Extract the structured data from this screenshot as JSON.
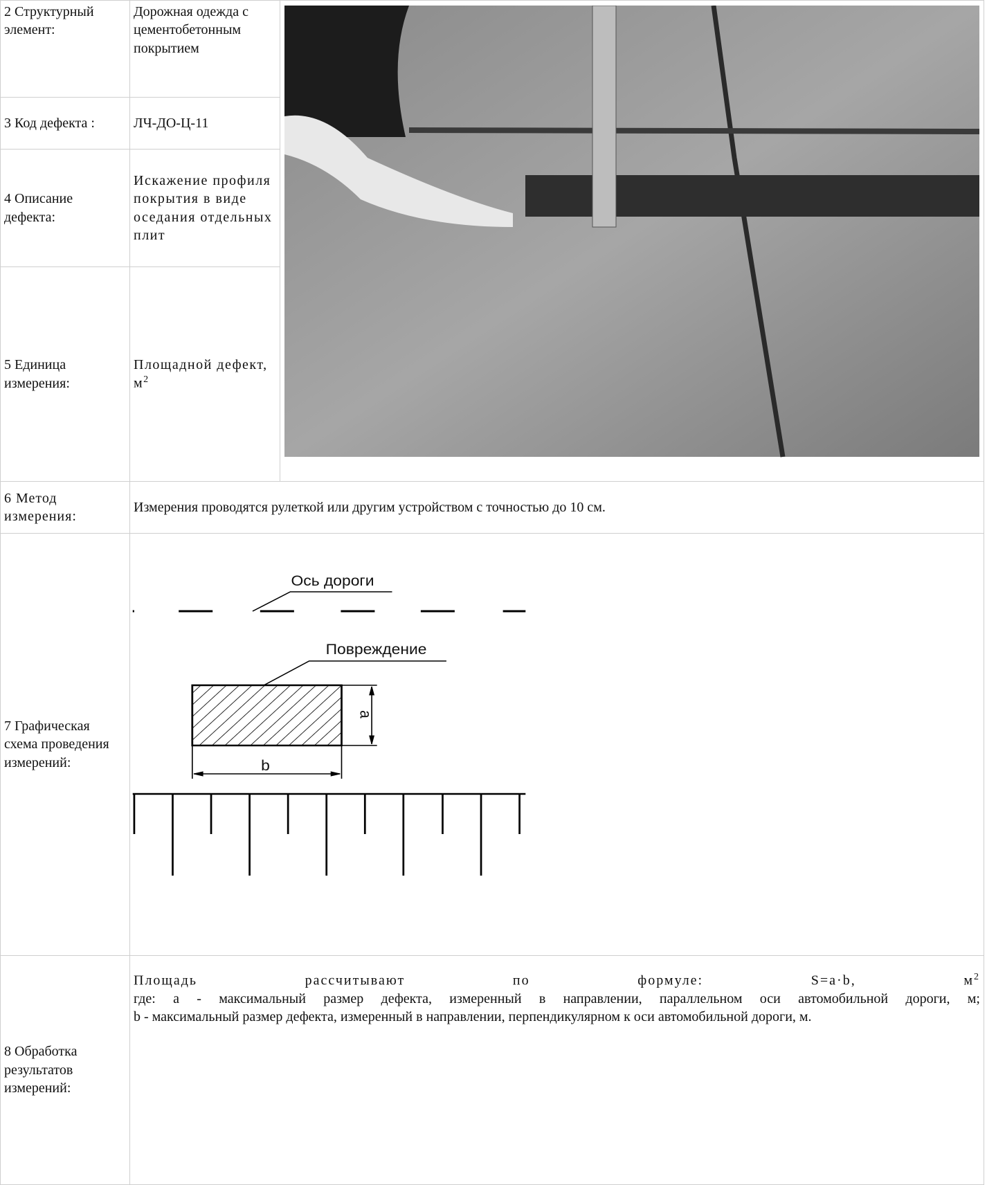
{
  "rows": [
    {
      "label": "2 Структурный элемент:",
      "value": "Дорожная одежда с цементобетонным покрытием"
    },
    {
      "label": "3 Код дефекта :",
      "value": "ЛЧ-ДО-Ц-11"
    },
    {
      "label": "4 Описание дефекта:",
      "value": "Искажение профиля покрытия в виде оседания отдельных плит"
    },
    {
      "label": "5 Единица измерения:",
      "value": "Площадной дефект, м",
      "value_sup": "2"
    },
    {
      "label": "6 Метод измерения:",
      "value": "Измерения проводятся рулеткой или другим устройством с точностью до 10 см."
    },
    {
      "label": "7 Графическая схема проведения измерений:"
    },
    {
      "label": "8 Обработка результатов измерений:",
      "formula": "Площадь рассчитывают по формуле: S=a·b, м",
      "formula_sup": "2",
      "paragraphs": [
        "где: a - максимальный размер дефекта, измеренный в направлении, параллельном оси автомобильной дороги, м;",
        "b - максимальный размер дефекта, измеренный в направлении, перпендикулярном к оси автомобильной дороги, м."
      ]
    }
  ],
  "diagram": {
    "axis_label": "Ось дороги",
    "damage_label": "Повреждение",
    "a": "a",
    "b": "b"
  }
}
